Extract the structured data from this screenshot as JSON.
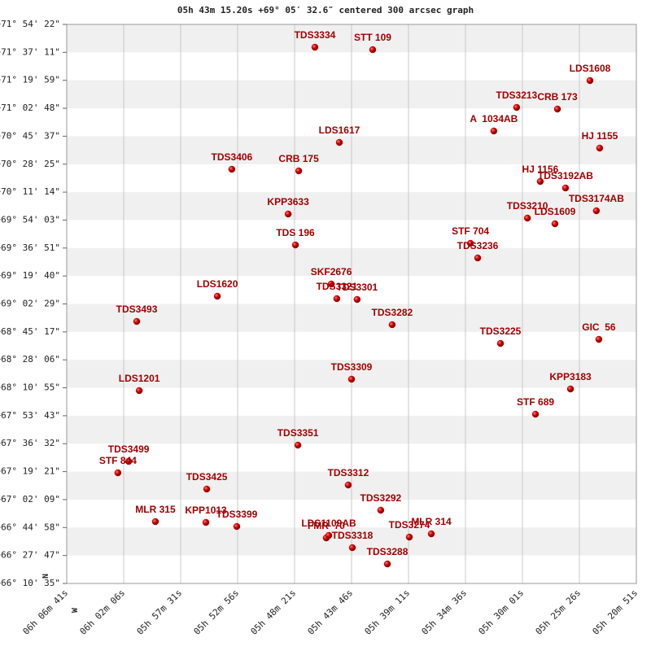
{
  "chart_data": {
    "type": "scatter",
    "title": "05h 43m 15.20s +69° 05′ 32.6″ centered 300 arcsec graph",
    "north_label": "N",
    "west_label": "W",
    "grid": true,
    "xlim": [
      22001,
      19251
    ],
    "xticks": [
      {
        "value": 22001,
        "label": "06h 06m 41s"
      },
      {
        "value": 21726,
        "label": "06h 02m 06s"
      },
      {
        "value": 21451,
        "label": "05h 57m 31s"
      },
      {
        "value": 21176,
        "label": "05h 52m 56s"
      },
      {
        "value": 20901,
        "label": "05h 48m 21s"
      },
      {
        "value": 20626,
        "label": "05h 43m 46s"
      },
      {
        "value": 20351,
        "label": "05h 39m 11s"
      },
      {
        "value": 20076,
        "label": "05h 34m 36s"
      },
      {
        "value": 19801,
        "label": "05h 30m 01s"
      },
      {
        "value": 19526,
        "label": "05h 25m 26s"
      },
      {
        "value": 19251,
        "label": "05h 20m 51s"
      }
    ],
    "ylim": [
      238235,
      258862
    ],
    "yticks": [
      {
        "value": 258862,
        "label": "+71° 54' 22\""
      },
      {
        "value": 257831,
        "label": "+71° 37' 11\""
      },
      {
        "value": 256799,
        "label": "+71° 19' 59\""
      },
      {
        "value": 255768,
        "label": "+71° 02' 48\""
      },
      {
        "value": 254737,
        "label": "+70° 45' 37\""
      },
      {
        "value": 253705,
        "label": "+70° 28' 25\""
      },
      {
        "value": 252674,
        "label": "+70° 11' 14\""
      },
      {
        "value": 251643,
        "label": "+69° 54' 03\""
      },
      {
        "value": 250611,
        "label": "+69° 36' 51\""
      },
      {
        "value": 249580,
        "label": "+69° 19' 40\""
      },
      {
        "value": 248549,
        "label": "+69° 02' 29\""
      },
      {
        "value": 247517,
        "label": "+68° 45' 17\""
      },
      {
        "value": 246486,
        "label": "+68° 28' 06\""
      },
      {
        "value": 245455,
        "label": "+68° 10' 55\""
      },
      {
        "value": 244423,
        "label": "+67° 53' 43\""
      },
      {
        "value": 243392,
        "label": "+67° 36' 32\""
      },
      {
        "value": 242361,
        "label": "+67° 19' 21\""
      },
      {
        "value": 241329,
        "label": "+67° 02' 09\""
      },
      {
        "value": 240298,
        "label": "+66° 44' 58\""
      },
      {
        "value": 239267,
        "label": "+66° 27' 47\""
      },
      {
        "value": 238235,
        "label": "+66° 10' 35\""
      }
    ],
    "x": [
      20803,
      20524,
      19475,
      19829,
      19632,
      19939,
      20685,
      19428,
      21204,
      20881,
      19715,
      19593,
      20932,
      19777,
      19644,
      19444,
      20897,
      20052,
      20017,
      20724,
      20697,
      20599,
      21274,
      21663,
      20430,
      19907,
      19432,
      20626,
      21651,
      19569,
      19738,
      20885,
      21702,
      21754,
      21325,
      20642,
      20485,
      21573,
      21329,
      21180,
      20748,
      20622,
      20736,
      20347,
      20241,
      20453
    ],
    "series": [
      {
        "color": "#cc0000",
        "labels": [
          "TDS3334",
          "STT 109",
          "LDS1608",
          "TDS3213",
          "CRB 173",
          "A  1034AB",
          "LDS1617",
          "HJ 1155",
          "TDS3406",
          "CRB 175",
          "HJ 1156",
          "TDS3192AB",
          "KPP3633",
          "TDS3210",
          "LDS1609",
          "TDS3174AB",
          "TDS 196",
          "STF 704",
          "TDS3236",
          "SKF2676",
          "TDS3321",
          "TDS3301",
          "LDS1620",
          "TDS3493",
          "TDS3282",
          "TDS3225",
          "GIC  56",
          "TDS3309",
          "LDS1201",
          "KPP3183",
          "STF 689",
          "TDS3351",
          "TDS3499",
          "STF 844",
          "TDS3425",
          "TDS3312",
          "TDS3292",
          "MLR 315",
          "KPP1013",
          "TDS3399",
          "FMR  70",
          "TDS3318",
          "LDS1109AB",
          "TDS3274",
          "MLR 314",
          "TDS3288"
        ],
        "values": [
          258021,
          257931,
          256790,
          255799,
          255739,
          254929,
          254508,
          254298,
          253518,
          253458,
          253067,
          252827,
          251866,
          251716,
          251506,
          251986,
          250725,
          250785,
          250245,
          249284,
          248744,
          248714,
          248834,
          247903,
          247783,
          247092,
          247242,
          245771,
          245351,
          245411,
          244480,
          243339,
          242739,
          242318,
          241718,
          241868,
          240937,
          240517,
          240487,
          240337,
          239916,
          239556,
          240006,
          239946,
          240066,
          238955
        ]
      }
    ]
  }
}
